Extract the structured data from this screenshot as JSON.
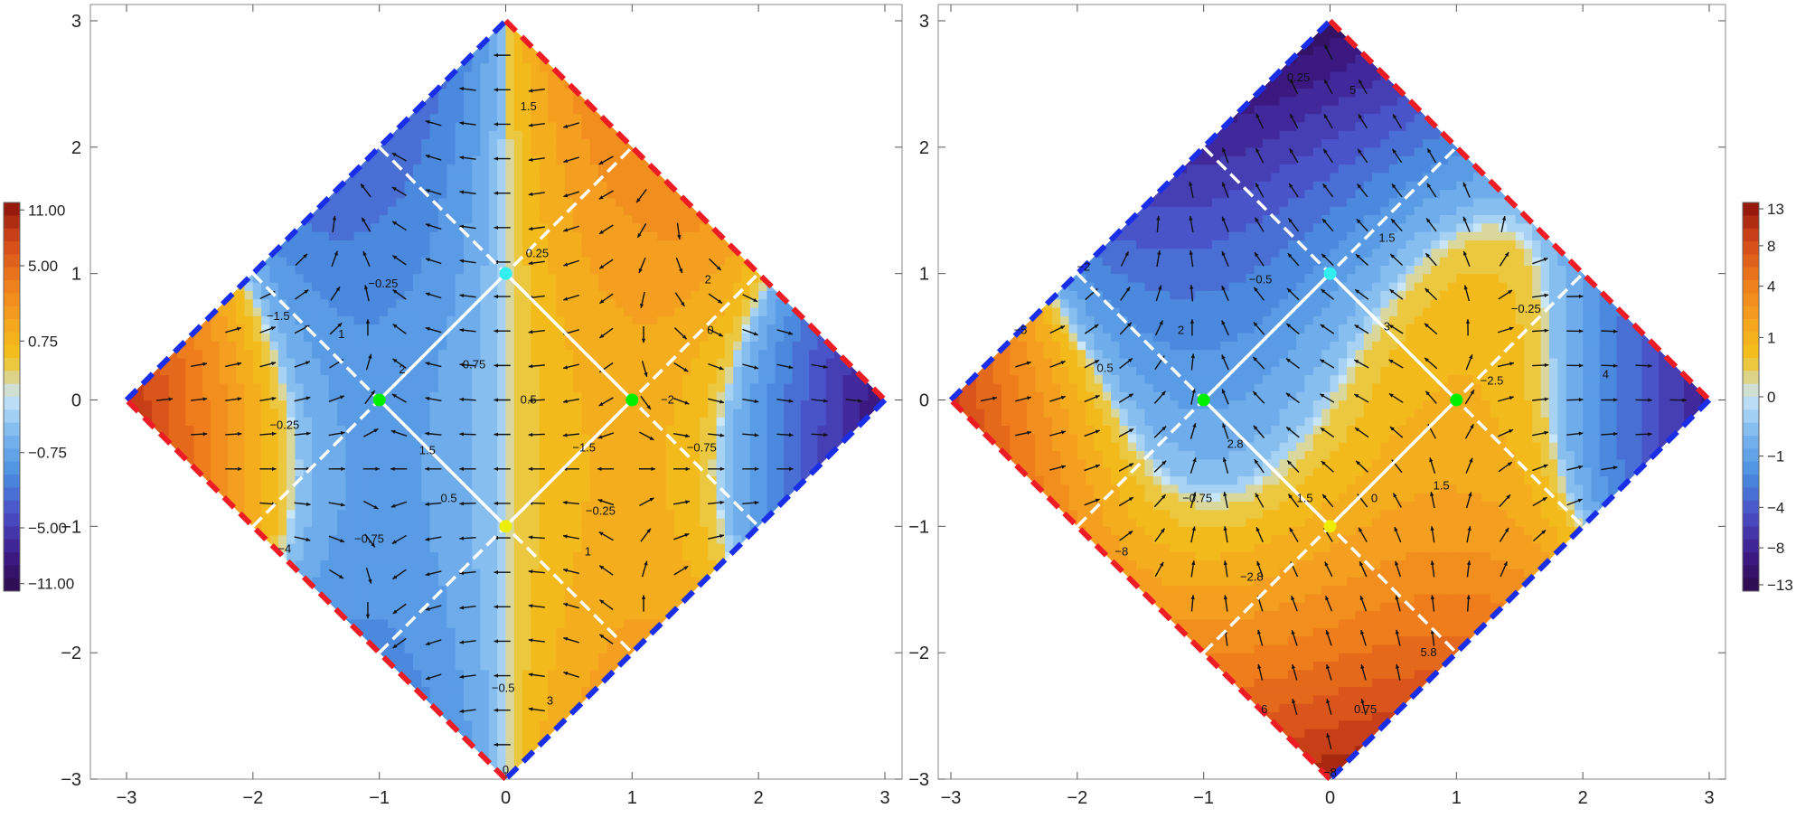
{
  "chart_data": [
    {
      "type": "contour",
      "panel": "left",
      "xlim": [
        -3,
        3
      ],
      "ylim": [
        -3,
        3
      ],
      "x_ticks": [
        "-3",
        "-2",
        "-1",
        "0",
        "1",
        "2",
        "3"
      ],
      "y_ticks": [
        "-3",
        "-2",
        "-1",
        "0",
        "1",
        "2",
        "3"
      ],
      "domain": "diamond |x|+|y| <= 3",
      "colorbar": {
        "placement": "left",
        "tick_labels": [
          "11.00",
          "5.00",
          "0.75",
          "−0.75",
          "−5.00",
          "−11.00"
        ],
        "tick_values": [
          11,
          5,
          0.75,
          -0.75,
          -5,
          -11
        ],
        "range": [
          -12,
          12
        ]
      },
      "contour_labels": [
        {
          "text": "1.5",
          "x": 0.18,
          "y": 2.32
        },
        {
          "text": "0.25",
          "x": 0.25,
          "y": 1.16
        },
        {
          "text": "2",
          "x": 1.6,
          "y": 0.95
        },
        {
          "text": "0",
          "x": 1.62,
          "y": 0.55
        },
        {
          "text": "−0.25",
          "x": -0.97,
          "y": 0.92
        },
        {
          "text": "−1.5",
          "x": -1.8,
          "y": 0.66
        },
        {
          "text": "1",
          "x": -1.3,
          "y": 0.52
        },
        {
          "text": "2",
          "x": -0.82,
          "y": 0.24
        },
        {
          "text": "0.75",
          "x": -0.25,
          "y": 0.28
        },
        {
          "text": "0.5",
          "x": 0.18,
          "y": 0.0
        },
        {
          "text": "−2",
          "x": 1.28,
          "y": 0.0
        },
        {
          "text": "−0.25",
          "x": -1.75,
          "y": -0.2
        },
        {
          "text": "1.5",
          "x": -0.62,
          "y": -0.4
        },
        {
          "text": "−1.5",
          "x": 0.62,
          "y": -0.38
        },
        {
          "text": "−0.75",
          "x": 1.55,
          "y": -0.38
        },
        {
          "text": "0.5",
          "x": -0.45,
          "y": -0.78
        },
        {
          "text": "−0.25",
          "x": 0.75,
          "y": -0.88
        },
        {
          "text": "−0.75",
          "x": -1.08,
          "y": -1.1
        },
        {
          "text": "1",
          "x": 0.65,
          "y": -1.2
        },
        {
          "text": "−4",
          "x": -1.75,
          "y": -1.18
        },
        {
          "text": "−0.5",
          "x": -0.02,
          "y": -2.28
        },
        {
          "text": "3",
          "x": 0.35,
          "y": -2.38
        },
        {
          "text": "0",
          "x": 0.0,
          "y": -2.93
        }
      ],
      "critical_points": [
        {
          "x": -1,
          "y": 0,
          "color": "#00ee00"
        },
        {
          "x": 1,
          "y": 0,
          "color": "#00ee00"
        },
        {
          "x": 0,
          "y": 1,
          "color": "#33eeee"
        },
        {
          "x": 0,
          "y": -1,
          "color": "#eeee00"
        }
      ]
    },
    {
      "type": "contour",
      "panel": "right",
      "xlim": [
        -3,
        3
      ],
      "ylim": [
        -3,
        3
      ],
      "x_ticks": [
        "-3",
        "-2",
        "-1",
        "0",
        "1",
        "2",
        "3"
      ],
      "y_ticks": [
        "-3",
        "-2",
        "-1",
        "0",
        "1",
        "2",
        "3"
      ],
      "domain": "diamond |x|+|y| <= 3",
      "colorbar": {
        "placement": "right",
        "tick_labels": [
          "13",
          "8",
          "4",
          "1",
          "0",
          "−1",
          "−4",
          "−8",
          "−13"
        ],
        "tick_values": [
          13,
          8,
          4,
          1,
          0,
          -1,
          -4,
          -8,
          -13
        ],
        "range": [
          -14,
          14
        ]
      },
      "contour_labels": [
        {
          "text": "0.25",
          "x": -0.25,
          "y": 2.55
        },
        {
          "text": "5",
          "x": 0.18,
          "y": 2.45
        },
        {
          "text": "1.5",
          "x": 0.45,
          "y": 1.28
        },
        {
          "text": "−2",
          "x": -1.95,
          "y": 1.05
        },
        {
          "text": "−0.5",
          "x": -0.55,
          "y": 0.95
        },
        {
          "text": "−0.25",
          "x": 1.55,
          "y": 0.72
        },
        {
          "text": "2",
          "x": -1.18,
          "y": 0.55
        },
        {
          "text": "3",
          "x": 0.45,
          "y": 0.58
        },
        {
          "text": "−5",
          "x": -2.45,
          "y": 0.55
        },
        {
          "text": "4",
          "x": 2.18,
          "y": 0.2
        },
        {
          "text": "0.5",
          "x": -1.78,
          "y": 0.25
        },
        {
          "text": "−2.5",
          "x": 1.28,
          "y": 0.15
        },
        {
          "text": "2.8",
          "x": -0.75,
          "y": -0.35
        },
        {
          "text": "1.5",
          "x": 0.88,
          "y": -0.68
        },
        {
          "text": "1.5",
          "x": -0.2,
          "y": -0.78
        },
        {
          "text": "0",
          "x": 0.35,
          "y": -0.78
        },
        {
          "text": "−0.75",
          "x": -1.05,
          "y": -0.78
        },
        {
          "text": "−8",
          "x": -1.65,
          "y": -1.2
        },
        {
          "text": "−2.8",
          "x": -0.62,
          "y": -1.4
        },
        {
          "text": "5.8",
          "x": 0.78,
          "y": -2.0
        },
        {
          "text": "0.75",
          "x": 0.28,
          "y": -2.45
        },
        {
          "text": "−8",
          "x": 0.0,
          "y": -2.95
        },
        {
          "text": "6",
          "x": -0.52,
          "y": -2.45
        }
      ],
      "critical_points": [
        {
          "x": -1,
          "y": 0,
          "color": "#00ee00"
        },
        {
          "x": 1,
          "y": 0,
          "color": "#00ee00"
        },
        {
          "x": 0,
          "y": 1,
          "color": "#33eeee"
        },
        {
          "x": 0,
          "y": -1,
          "color": "#eeee00"
        }
      ]
    }
  ],
  "colors": {
    "colormap": [
      "#2d0a4a",
      "#3e1c8c",
      "#4a4fc7",
      "#4a8ee0",
      "#7ab6ee",
      "#c8e6f7",
      "#f2c21a",
      "#f5a21f",
      "#ee7a1c",
      "#d2481a",
      "#8a1008"
    ],
    "boundary_red": "#ee1c24",
    "boundary_blue": "#1a2ee8",
    "separatrix": "#ffffff"
  }
}
